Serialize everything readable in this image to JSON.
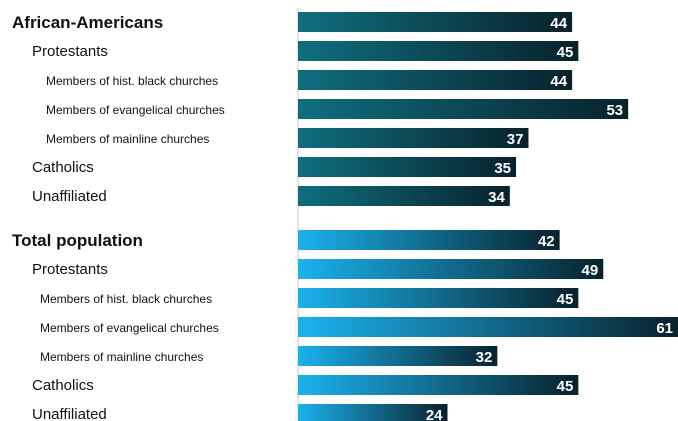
{
  "chart_data": {
    "type": "bar",
    "orientation": "horizontal",
    "title": "",
    "xlabel": "",
    "ylabel": "",
    "xlim": [
      0,
      61
    ],
    "grid": false,
    "groups": [
      {
        "name": "African-Americans",
        "color_start": "#0f6e7e",
        "color_end": "#08222b",
        "categories": [
          {
            "label": "African-Americans",
            "level": 0,
            "value": 44
          },
          {
            "label": "Protestants",
            "level": 1,
            "value": 45
          },
          {
            "label": "Members of hist. black churches",
            "level": 2,
            "value": 44
          },
          {
            "label": "Members of evangelical churches",
            "level": 2,
            "value": 53
          },
          {
            "label": "Members of mainline churches",
            "level": 2,
            "value": 37
          },
          {
            "label": "Catholics",
            "level": 1,
            "value": 35
          },
          {
            "label": "Unaffiliated",
            "level": 1,
            "value": 34
          }
        ]
      },
      {
        "name": "Total population",
        "color_start": "#1ab2ee",
        "color_end": "#08222b",
        "categories": [
          {
            "label": "Total population",
            "level": 0,
            "value": 42
          },
          {
            "label": "Protestants",
            "level": 1,
            "value": 49
          },
          {
            "label": "Members of hist. black churches",
            "level": 2,
            "value": 45
          },
          {
            "label": "Members of evangelical churches",
            "level": 2,
            "value": 61
          },
          {
            "label": "Members of mainline churches",
            "level": 2,
            "value": 32
          },
          {
            "label": "Catholics",
            "level": 1,
            "value": 45
          },
          {
            "label": "Unaffiliated",
            "level": 1,
            "value": 24
          }
        ]
      }
    ]
  }
}
